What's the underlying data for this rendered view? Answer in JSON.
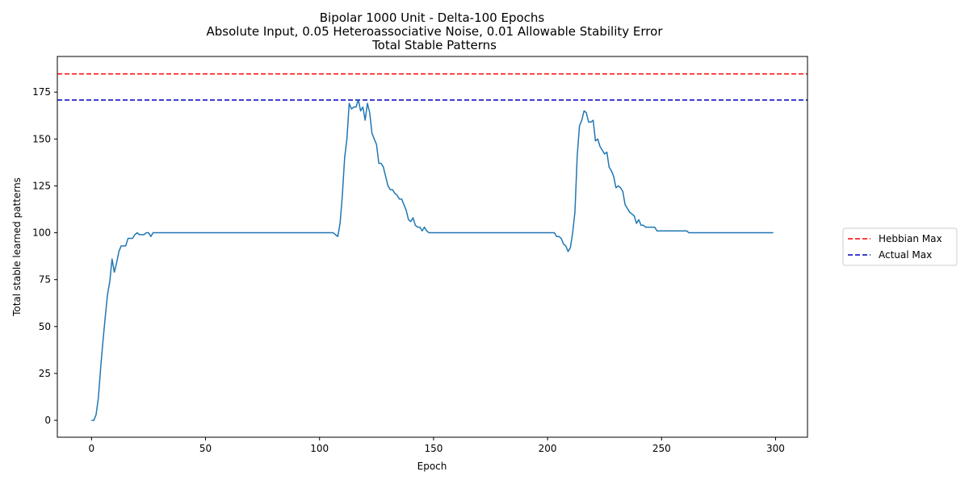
{
  "chart_data": {
    "type": "line",
    "title_lines": [
      "Bipolar 1000 Unit - Delta-100 Epochs",
      "Absolute Input, 0.05 Heteroassociative Noise, 0.01 Allowable Stability Error",
      "Total Stable Patterns"
    ],
    "xlabel": "Epoch",
    "ylabel": "Total stable learned patterns",
    "xlim": [
      -15,
      314
    ],
    "ylim": [
      -9,
      194
    ],
    "xticks": [
      0,
      50,
      100,
      150,
      200,
      250,
      300
    ],
    "yticks": [
      0,
      25,
      50,
      75,
      100,
      125,
      150,
      175
    ],
    "grid": false,
    "legend_position": "outside-right",
    "series": [
      {
        "color": "#1f77b4",
        "points": [
          [
            0,
            0
          ],
          [
            1,
            0
          ],
          [
            2,
            3
          ],
          [
            3,
            12
          ],
          [
            4,
            28
          ],
          [
            5,
            42
          ],
          [
            6,
            55
          ],
          [
            7,
            67
          ],
          [
            8,
            74
          ],
          [
            9,
            86
          ],
          [
            10,
            79
          ],
          [
            11,
            84
          ],
          [
            12,
            90
          ],
          [
            13,
            93
          ],
          [
            14,
            93
          ],
          [
            15,
            93
          ],
          [
            16,
            97
          ],
          [
            17,
            97
          ],
          [
            18,
            97
          ],
          [
            19,
            99
          ],
          [
            20,
            100
          ],
          [
            21,
            99
          ],
          [
            22,
            99
          ],
          [
            23,
            99
          ],
          [
            24,
            100
          ],
          [
            25,
            100
          ],
          [
            26,
            98
          ],
          [
            27,
            100
          ],
          [
            28,
            100
          ],
          [
            40,
            100
          ],
          [
            60,
            100
          ],
          [
            80,
            100
          ],
          [
            100,
            100
          ],
          [
            105,
            100
          ],
          [
            106,
            100
          ],
          [
            107,
            99
          ],
          [
            108,
            98
          ],
          [
            109,
            105
          ],
          [
            110,
            120
          ],
          [
            111,
            140
          ],
          [
            112,
            150
          ],
          [
            113,
            169
          ],
          [
            114,
            166
          ],
          [
            115,
            167
          ],
          [
            116,
            167
          ],
          [
            117,
            171
          ],
          [
            118,
            165
          ],
          [
            119,
            167
          ],
          [
            120,
            160
          ],
          [
            121,
            169
          ],
          [
            122,
            164
          ],
          [
            123,
            153
          ],
          [
            124,
            150
          ],
          [
            125,
            147
          ],
          [
            126,
            137
          ],
          [
            127,
            137
          ],
          [
            128,
            135
          ],
          [
            129,
            130
          ],
          [
            130,
            125
          ],
          [
            131,
            123
          ],
          [
            132,
            123
          ],
          [
            133,
            121
          ],
          [
            134,
            120
          ],
          [
            135,
            118
          ],
          [
            136,
            118
          ],
          [
            137,
            115
          ],
          [
            138,
            112
          ],
          [
            139,
            107
          ],
          [
            140,
            106
          ],
          [
            141,
            108
          ],
          [
            142,
            104
          ],
          [
            143,
            103
          ],
          [
            144,
            103
          ],
          [
            145,
            101
          ],
          [
            146,
            103
          ],
          [
            147,
            101
          ],
          [
            148,
            100
          ],
          [
            149,
            100
          ],
          [
            160,
            100
          ],
          [
            180,
            100
          ],
          [
            200,
            100
          ],
          [
            203,
            100
          ],
          [
            204,
            98
          ],
          [
            205,
            98
          ],
          [
            206,
            97
          ],
          [
            207,
            94
          ],
          [
            208,
            93
          ],
          [
            209,
            90
          ],
          [
            210,
            92
          ],
          [
            211,
            100
          ],
          [
            212,
            111
          ],
          [
            213,
            141
          ],
          [
            214,
            157
          ],
          [
            215,
            160
          ],
          [
            216,
            165
          ],
          [
            217,
            164
          ],
          [
            218,
            159
          ],
          [
            219,
            159
          ],
          [
            220,
            160
          ],
          [
            221,
            149
          ],
          [
            222,
            150
          ],
          [
            223,
            146
          ],
          [
            224,
            144
          ],
          [
            225,
            142
          ],
          [
            226,
            143
          ],
          [
            227,
            135
          ],
          [
            228,
            133
          ],
          [
            229,
            130
          ],
          [
            230,
            124
          ],
          [
            231,
            125
          ],
          [
            232,
            124
          ],
          [
            233,
            122
          ],
          [
            234,
            115
          ],
          [
            235,
            113
          ],
          [
            236,
            111
          ],
          [
            237,
            110
          ],
          [
            238,
            109
          ],
          [
            239,
            105
          ],
          [
            240,
            107
          ],
          [
            241,
            104
          ],
          [
            242,
            104
          ],
          [
            243,
            103
          ],
          [
            244,
            103
          ],
          [
            245,
            103
          ],
          [
            246,
            103
          ],
          [
            247,
            103
          ],
          [
            248,
            101
          ],
          [
            249,
            101
          ],
          [
            255,
            101
          ],
          [
            260,
            101
          ],
          [
            261,
            101
          ],
          [
            262,
            100
          ],
          [
            270,
            100
          ],
          [
            280,
            100
          ],
          [
            290,
            100
          ],
          [
            299,
            100
          ]
        ]
      }
    ],
    "reference_lines": [
      {
        "name": "Hebbian Max",
        "y": 184.7,
        "color": "#ff0000",
        "style": "dashed"
      },
      {
        "name": "Actual Max",
        "y": 170.8,
        "color": "#0000bb",
        "style": "dashed"
      }
    ]
  }
}
